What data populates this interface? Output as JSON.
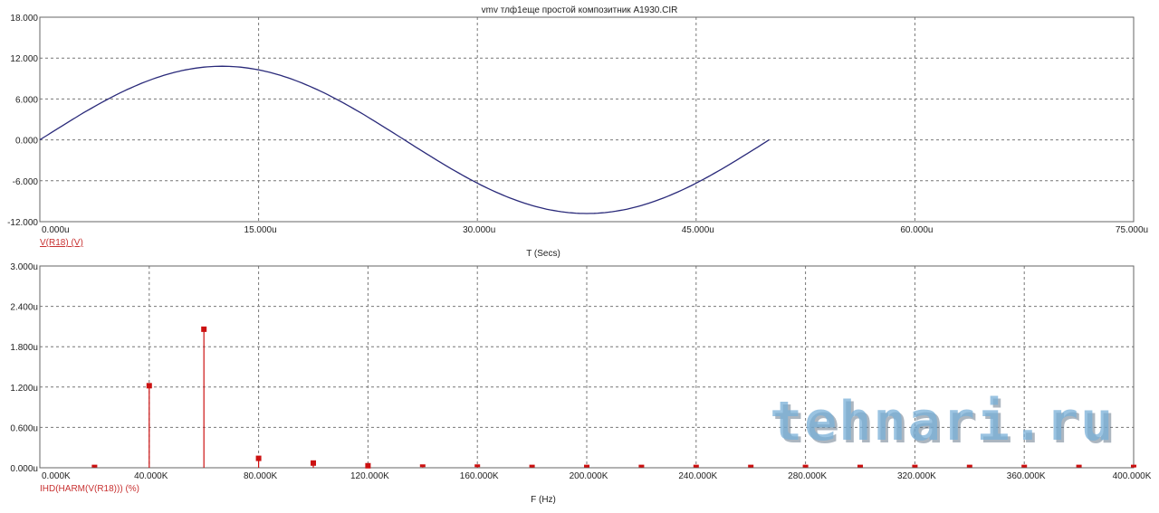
{
  "title": "vmv тлф1еще   простой композитник A1930.CIR",
  "watermark": "tehnari.ru",
  "chart_data": [
    {
      "type": "line",
      "xlabel": "T (Secs)",
      "series_label": "V(R18) (V)",
      "xlim": [
        0,
        75
      ],
      "ylim": [
        -12,
        18
      ],
      "x_ticks": [
        "0.000u",
        "15.000u",
        "30.000u",
        "45.000u",
        "60.000u",
        "75.000u"
      ],
      "y_ticks": [
        "18.000",
        "12.000",
        "6.000",
        "0.000",
        "-6.000",
        "-12.000"
      ],
      "grid": true,
      "series": [
        {
          "function": "sine",
          "amplitude": 10.8,
          "period_us": 50,
          "x_start_us": 0,
          "x_end_us": 50,
          "color": "#2a2a7a"
        }
      ]
    },
    {
      "type": "bar",
      "xlabel": "F (Hz)",
      "series_label": "IHD(HARM(V(R18))) (%)",
      "xlim": [
        0,
        400
      ],
      "ylim": [
        0,
        3.0
      ],
      "x_ticks": [
        "0.000K",
        "40.000K",
        "80.000K",
        "120.000K",
        "160.000K",
        "200.000K",
        "240.000K",
        "280.000K",
        "320.000K",
        "360.000K",
        "400.000K"
      ],
      "y_ticks": [
        "3.000u",
        "2.400u",
        "1.800u",
        "1.200u",
        "0.600u",
        "0.000u"
      ],
      "grid": true,
      "color": "#cc1111",
      "x": [
        20,
        40,
        60,
        80,
        100,
        120,
        140,
        160,
        180,
        200,
        220,
        240,
        260,
        280,
        300,
        320,
        340,
        360,
        380,
        400
      ],
      "values": [
        0.005,
        1.22,
        2.06,
        0.14,
        0.07,
        0.03,
        0.01,
        0.01,
        0.005,
        0.005,
        0.005,
        0.005,
        0.005,
        0.005,
        0.005,
        0.005,
        0.005,
        0.005,
        0.005,
        0.005
      ]
    }
  ]
}
